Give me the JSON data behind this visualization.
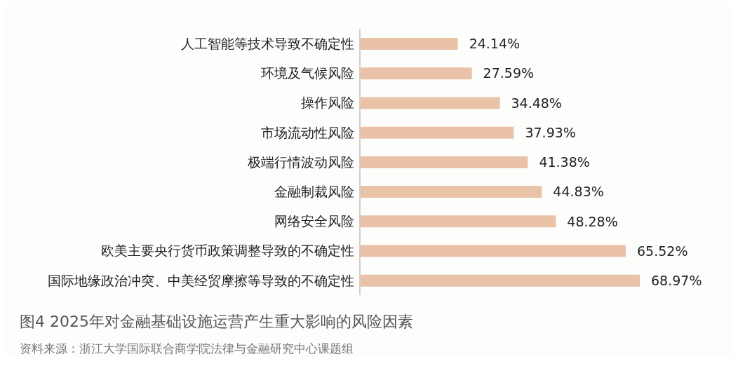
{
  "chart_data": {
    "type": "bar",
    "orientation": "horizontal",
    "title": "图4  2025年对金融基础设施运营产生重大影响的风险因素",
    "categories": [
      "人工智能等技术导致不确定性",
      "环境及气候风险",
      "操作风险",
      "市场流动性风险",
      "极端行情波动风险",
      "金融制裁风险",
      "网络安全风险",
      "欧美主要央行货币政策调整导致的不确定性",
      "国际地缘政治冲突、中美经贸摩擦等导致的不确定性"
    ],
    "values": [
      24.14,
      27.59,
      34.48,
      37.93,
      41.38,
      44.83,
      48.28,
      65.52,
      68.97
    ],
    "value_labels": [
      "24.14%",
      "27.59%",
      "34.48%",
      "37.93%",
      "41.38%",
      "44.83%",
      "48.28%",
      "65.52%",
      "68.97%"
    ],
    "color": "#e9c2a8",
    "tick_labels": "y",
    "annotations": [
      "资料来源：浙江大学国际联合商学院法律与金融研究中心课题组"
    ]
  }
}
